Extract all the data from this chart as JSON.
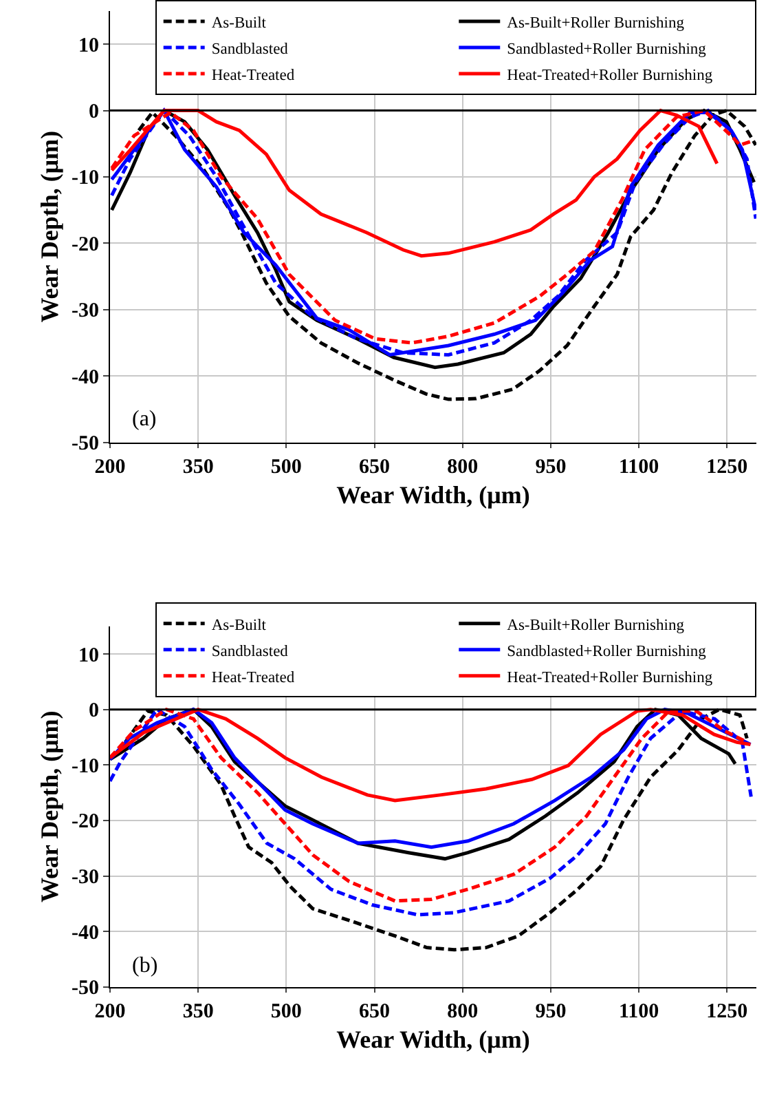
{
  "chart_data": [
    {
      "type": "line",
      "xlabel": "Wear Width, (μm)",
      "ylabel": "Wear Depth, (μm)",
      "xlim": [
        200,
        1300
      ],
      "ylim": [
        -50,
        15
      ],
      "xticks": [
        200,
        350,
        500,
        650,
        800,
        950,
        1100,
        1250
      ],
      "yticks": [
        -50,
        -40,
        -30,
        -20,
        -10,
        0,
        10
      ],
      "grid": true,
      "legend": "top",
      "annotations": [
        "(a)"
      ],
      "ref_lines": [
        {
          "axis": "y",
          "value": 0,
          "color": "#000000"
        }
      ],
      "series": [
        {
          "name": "As-Built",
          "color": "#000000",
          "line_style": "dashed",
          "x": [
            249,
            272,
            311,
            358,
            404,
            424,
            466,
            505,
            559,
            621,
            683,
            738,
            776,
            823,
            885,
            931,
            978,
            1024,
            1063,
            1086,
            1125,
            1156,
            1195,
            1226,
            1249,
            1280,
            1299
          ],
          "values": [
            -3,
            -0.3,
            -3.8,
            -8.7,
            -15,
            -18.4,
            -26,
            -31,
            -35,
            -38,
            -40.6,
            -42.7,
            -43.5,
            -43.4,
            -42,
            -39.2,
            -35.4,
            -29.5,
            -24.7,
            -19,
            -15,
            -9.4,
            -3.8,
            -0.7,
            0,
            -2.4,
            -5.2
          ]
        },
        {
          "name": "As-Built+Roller Burnishing",
          "color": "#000000",
          "line_style": "solid",
          "x": [
            203,
            234,
            265,
            292,
            327,
            366,
            412,
            451,
            482,
            505,
            552,
            621,
            683,
            753,
            792,
            870,
            916,
            955,
            1001,
            1048,
            1086,
            1133,
            1180,
            1211,
            1249,
            1272,
            1296
          ],
          "values": [
            -15,
            -9.4,
            -3,
            0,
            -1.7,
            -5.9,
            -12.8,
            -18.4,
            -24,
            -28.8,
            -31.6,
            -34.4,
            -37.2,
            -38.7,
            -38.2,
            -36.5,
            -33.7,
            -29.5,
            -25.3,
            -18.4,
            -12.2,
            -5.9,
            -1.4,
            0,
            -1.7,
            -5.9,
            -10.8
          ]
        },
        {
          "name": "Sandblasted",
          "color": "#0000ff",
          "line_style": "dashed",
          "x": [
            203,
            234,
            292,
            335,
            381,
            420,
            482,
            544,
            621,
            699,
            776,
            854,
            916,
            962,
            1009,
            1063,
            1094,
            1141,
            1187,
            1218,
            1257,
            1284,
            1299
          ],
          "values": [
            -12.8,
            -7.3,
            0,
            -3.8,
            -10,
            -16.3,
            -26,
            -31,
            -34.4,
            -36.5,
            -36.8,
            -35,
            -31.6,
            -28,
            -22.6,
            -18.4,
            -10.8,
            -5.2,
            -1,
            0,
            -3,
            -7.3,
            -16.3
          ]
        },
        {
          "name": "Sandblasted+Roller Burnishing",
          "color": "#0000ff",
          "line_style": "solid",
          "x": [
            203,
            241,
            292,
            327,
            381,
            428,
            482,
            552,
            606,
            676,
            776,
            854,
            924,
            971,
            1017,
            1055,
            1086,
            1133,
            1187,
            1218,
            1257,
            1276,
            1299
          ],
          "values": [
            -10.4,
            -5.9,
            0,
            -5.9,
            -11.5,
            -18.4,
            -23.3,
            -31.3,
            -33,
            -36.8,
            -35.4,
            -33.7,
            -31.6,
            -27.4,
            -22.6,
            -20.5,
            -11.5,
            -5.2,
            -0.3,
            -0.3,
            -3,
            -5.9,
            -15
          ]
        },
        {
          "name": "Heat-Treated",
          "color": "#ff0000",
          "line_style": "dashed",
          "x": [
            203,
            241,
            303,
            342,
            389,
            451,
            505,
            583,
            652,
            714,
            776,
            854,
            931,
            978,
            1024,
            1071,
            1110,
            1164,
            1211,
            1257,
            1272,
            1296
          ],
          "values": [
            -8.7,
            -3.8,
            -0.3,
            -3,
            -10,
            -16.3,
            -24.7,
            -31.6,
            -34.4,
            -35,
            -34,
            -32,
            -28,
            -24.7,
            -21.2,
            -13.5,
            -5.9,
            -1,
            0,
            -3.8,
            -5.2,
            -4.5
          ]
        },
        {
          "name": "Heat-Treated+Roller Burnishing",
          "color": "#ff0000",
          "line_style": "solid",
          "x": [
            203,
            234,
            292,
            350,
            381,
            420,
            466,
            505,
            559,
            637,
            699,
            730,
            776,
            854,
            916,
            955,
            993,
            1024,
            1063,
            1102,
            1137,
            1164,
            1202,
            1233
          ],
          "values": [
            -9,
            -6,
            0,
            0,
            -1.7,
            -3,
            -6.6,
            -12,
            -15.6,
            -18.4,
            -21,
            -21.9,
            -21.5,
            -19.8,
            -18,
            -15.6,
            -13.5,
            -10,
            -7.3,
            -3,
            0,
            -0.7,
            -2.4,
            -8
          ]
        }
      ]
    },
    {
      "type": "line",
      "xlabel": "Wear Width, (μm)",
      "ylabel": "Wear Depth, (μm)",
      "xlim": [
        200,
        1300
      ],
      "ylim": [
        -50,
        15
      ],
      "xticks": [
        200,
        350,
        500,
        650,
        800,
        950,
        1100,
        1250
      ],
      "yticks": [
        -50,
        -40,
        -30,
        -20,
        -10,
        0,
        10
      ],
      "grid": true,
      "legend": "top",
      "annotations": [
        "(b)"
      ],
      "ref_lines": [
        {
          "axis": "y",
          "value": 0,
          "color": "#000000"
        }
      ],
      "series": [
        {
          "name": "As-Built",
          "color": "#000000",
          "line_style": "dashed",
          "x": [
            226,
            264,
            296,
            342,
            389,
            412,
            436,
            475,
            506,
            545,
            607,
            685,
            739,
            786,
            840,
            895,
            949,
            996,
            1035,
            1074,
            1120,
            1167,
            1206,
            1237,
            1272,
            1284
          ],
          "values": [
            -5.9,
            -0.3,
            -1,
            -6.6,
            -13.6,
            -19.2,
            -24.8,
            -27.6,
            -31.8,
            -35.9,
            -38,
            -40.8,
            -42.9,
            -43.3,
            -42.9,
            -40.8,
            -36.6,
            -32.4,
            -28.3,
            -19.9,
            -12.2,
            -7.3,
            -1.7,
            0,
            -1,
            -5.2
          ]
        },
        {
          "name": "As-Built+Roller Burnishing",
          "color": "#000000",
          "line_style": "solid",
          "x": [
            200,
            257,
            296,
            342,
            373,
            412,
            498,
            545,
            622,
            708,
            770,
            809,
            879,
            941,
            996,
            1058,
            1097,
            1128,
            1167,
            1206,
            1253,
            1264
          ],
          "values": [
            -9,
            -5.2,
            -1.7,
            0,
            -3.1,
            -9.4,
            -17.4,
            -19.9,
            -24.1,
            -25.8,
            -26.9,
            -25.8,
            -23.4,
            -19.2,
            -15,
            -9.4,
            -3.1,
            0,
            -1,
            -5.2,
            -8,
            -9.8
          ]
        },
        {
          "name": "Sandblasted",
          "color": "#0000ff",
          "line_style": "dashed",
          "x": [
            200,
            218,
            280,
            327,
            373,
            420,
            467,
            514,
            576,
            646,
            724,
            786,
            879,
            949,
            996,
            1043,
            1082,
            1120,
            1174,
            1229,
            1276,
            1291
          ],
          "values": [
            -12.9,
            -9.4,
            0,
            -3.1,
            -10.8,
            -17.1,
            -24.1,
            -26.9,
            -32.4,
            -35.2,
            -37,
            -36.6,
            -34.5,
            -30.4,
            -26.2,
            -20.6,
            -12.2,
            -5.2,
            -0.3,
            -1.7,
            -5.9,
            -15.7
          ]
        },
        {
          "name": "Sandblasted+Roller Burnishing",
          "color": "#0000ff",
          "line_style": "solid",
          "x": [
            200,
            233,
            280,
            342,
            373,
            412,
            498,
            545,
            622,
            685,
            747,
            809,
            887,
            957,
            1019,
            1074,
            1113,
            1144,
            1183,
            1229,
            1290
          ],
          "values": [
            -9,
            -5.2,
            -2.4,
            0,
            -2.4,
            -8.7,
            -18.1,
            -20.6,
            -24.1,
            -23.7,
            -24.8,
            -23.7,
            -20.6,
            -16.4,
            -12.2,
            -7.3,
            -1.7,
            0,
            -0.7,
            -3.1,
            -6.3
          ]
        },
        {
          "name": "Heat-Treated",
          "color": "#ff0000",
          "line_style": "dashed",
          "x": [
            200,
            241,
            296,
            342,
            389,
            451,
            498,
            545,
            607,
            685,
            747,
            809,
            887,
            957,
            1011,
            1058,
            1105,
            1151,
            1198,
            1245,
            1284
          ],
          "values": [
            -8.7,
            -3.8,
            0,
            -1.7,
            -8.7,
            -15,
            -20.6,
            -26.2,
            -31,
            -34.5,
            -34.2,
            -32.4,
            -29.7,
            -24.8,
            -19.2,
            -12.2,
            -5.2,
            -0.3,
            -0.3,
            -3.8,
            -5.9
          ]
        },
        {
          "name": "Heat-Treated+Roller Burnishing",
          "color": "#ff0000",
          "line_style": "solid",
          "x": [
            200,
            257,
            350,
            397,
            451,
            498,
            560,
            638,
            685,
            762,
            840,
            918,
            980,
            1035,
            1097,
            1120,
            1174,
            1228,
            1267,
            1290
          ],
          "values": [
            -8.7,
            -4.2,
            0,
            -1.7,
            -5.2,
            -8.7,
            -12.2,
            -15.4,
            -16.4,
            -15.4,
            -14.3,
            -12.6,
            -10.1,
            -4.5,
            -0.3,
            0,
            -1,
            -4.5,
            -5.9,
            -6.3
          ]
        }
      ]
    }
  ]
}
